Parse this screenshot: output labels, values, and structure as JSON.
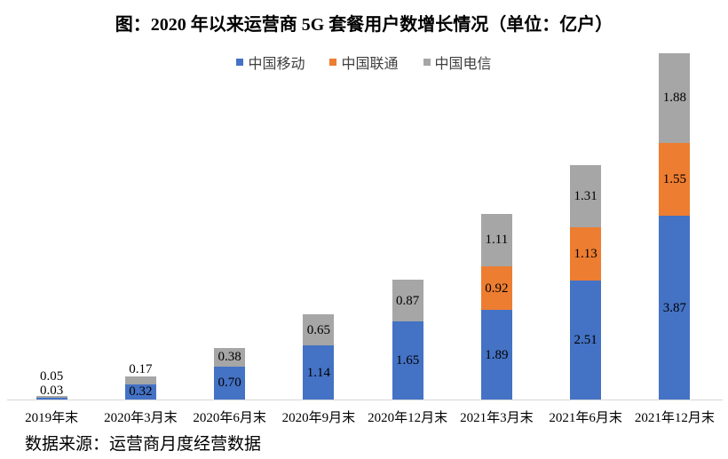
{
  "title": "图：2020 年以来运营商 5G 套餐用户数增长情况（单位：亿户）",
  "source_note": "数据来源：运营商月度经营数据",
  "colors": {
    "axis_line": "#d7d7d7",
    "label_text": "#000000",
    "legend_text": "#404040",
    "background": "#ffffff"
  },
  "chart_data": {
    "type": "bar",
    "subtype": "stacked-column",
    "title": "图：2020 年以来运营商 5G 套餐用户数增长情况（单位：亿户）",
    "unit": "亿户",
    "legend_position": "top",
    "value_labels": "center",
    "gridlines": false,
    "ylim": [
      0,
      7.5
    ],
    "categories": [
      "2019年末",
      "2020年3月末",
      "2020年6月末",
      "2020年9月末",
      "2020年12月末",
      "2021年3月末",
      "2021年6月末",
      "2021年12月末"
    ],
    "series": [
      {
        "name": "中国移动",
        "color": "#4472c4",
        "values": [
          0.03,
          0.32,
          0.7,
          1.14,
          1.65,
          1.89,
          2.51,
          3.87
        ]
      },
      {
        "name": "中国联通",
        "color": "#ed7d31",
        "values": [
          null,
          null,
          null,
          null,
          null,
          0.92,
          1.13,
          1.55
        ]
      },
      {
        "name": "中国电信",
        "color": "#a6a6a6",
        "values": [
          0.05,
          0.17,
          0.38,
          0.65,
          0.87,
          1.11,
          1.31,
          1.88
        ]
      }
    ]
  }
}
